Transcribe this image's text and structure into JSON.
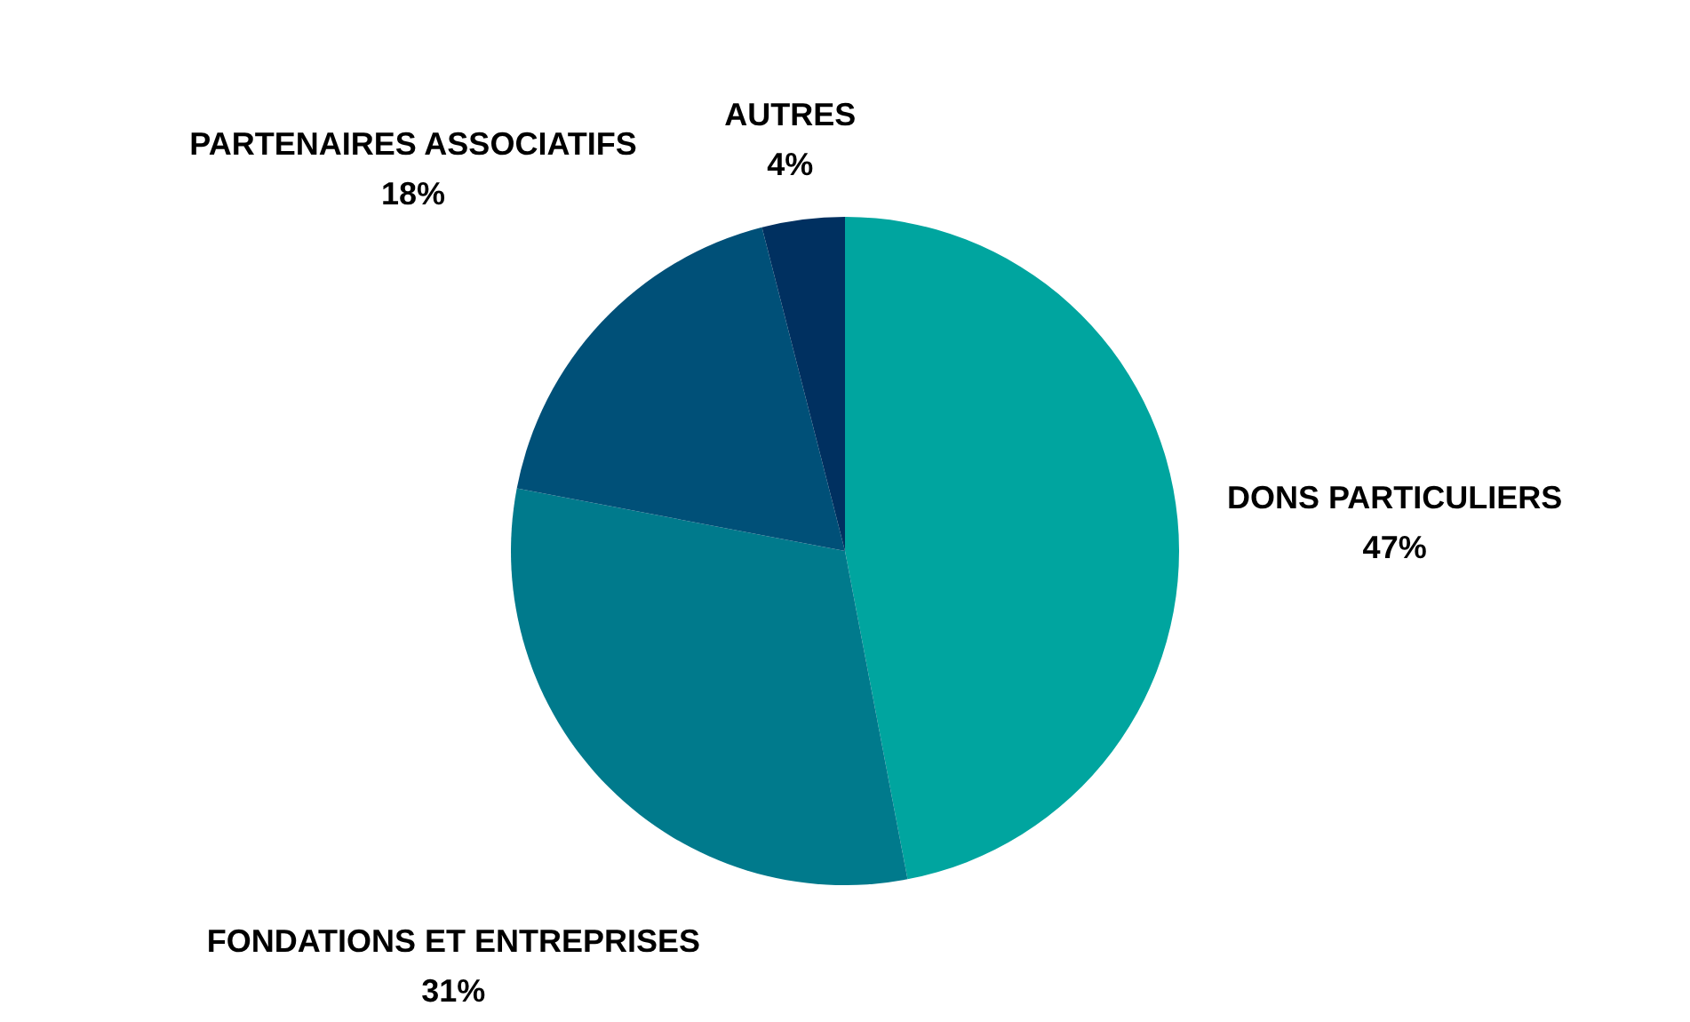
{
  "chart_data": {
    "type": "pie",
    "categories": [
      "DONS PARTICULIERS",
      "FONDATIONS ET ENTREPRISES",
      "PARTENAIRES ASSOCIATIFS",
      "AUTRES"
    ],
    "values": [
      47,
      31,
      18,
      4
    ],
    "value_labels": [
      "47%",
      "31%",
      "18%",
      "4%"
    ],
    "colors": [
      "#00a59f",
      "#007a8c",
      "#005078",
      "#003060"
    ],
    "legend": false
  }
}
